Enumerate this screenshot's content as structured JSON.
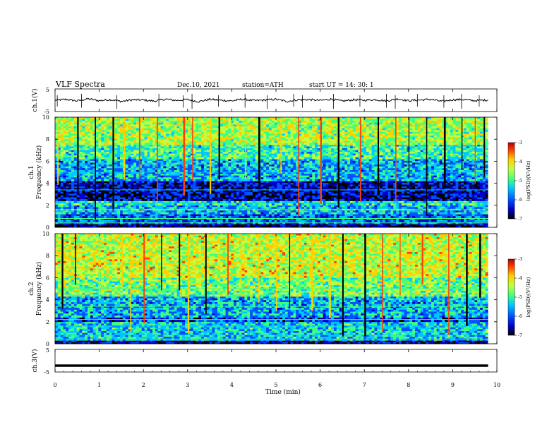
{
  "header": {
    "title": "VLF  Spectra",
    "date": "Dec.10, 2021",
    "station": "station=ATH",
    "start": "start  UT  =   14: 30: 1"
  },
  "chart_data": [
    {
      "type": "line",
      "panel": "ch1",
      "ylabel": "ch.1(V)",
      "ylim": [
        -5,
        5
      ],
      "yticks": [
        "5",
        "-5"
      ],
      "x": [
        0,
        0.25,
        0.5,
        0.75,
        1,
        1.25,
        1.5,
        1.75,
        2,
        2.25,
        2.5,
        2.75,
        3,
        3.25,
        3.5,
        3.75,
        4,
        4.25,
        4.5,
        4.75,
        5,
        5.25,
        5.5,
        5.75,
        6,
        6.25,
        6.5,
        6.75,
        7,
        7.25,
        7.5,
        7.75,
        8,
        8.25,
        8.5,
        8.75,
        9,
        9.25,
        9.5,
        9.8
      ],
      "values": [
        0,
        0.4,
        -0.3,
        0.6,
        -0.2,
        0.3,
        -0.5,
        0.2,
        0.1,
        -0.4,
        0.5,
        -0.1,
        0.3,
        -0.6,
        0.4,
        0,
        -0.3,
        0.5,
        -0.2,
        0.1,
        0.4,
        -0.5,
        0.2,
        0.3,
        -0.1,
        0.5,
        -0.4,
        0.2,
        0,
        0.3,
        -0.3,
        0.6,
        -0.2,
        0.1,
        0.4,
        -0.5,
        0.2,
        0.3,
        -0.2,
        0.1
      ],
      "spikes_min": [
        0.05,
        0.6,
        1.4,
        2.35,
        2.9,
        3.1,
        3.7,
        4.3,
        4.8,
        5.4,
        5.6,
        6.3,
        6.9,
        7.5,
        7.7,
        8.2,
        8.8,
        9.2,
        9.6
      ]
    },
    {
      "type": "heatmap",
      "panel": "ch1",
      "ylabel_channel": "ch.1",
      "ylabel": "Frequency  (kHz)",
      "ylim_khz": [
        0,
        10
      ],
      "yticks": [
        "0",
        "2",
        "4",
        "6",
        "8",
        "10"
      ],
      "colorbar": {
        "label": "log(PSD)(V²/Hz)",
        "range": [
          -7,
          -3
        ],
        "ticks": [
          "-3",
          "-4",
          "-5",
          "-6",
          "-7"
        ]
      },
      "profile": [
        {
          "khz": [
            0,
            0.3
          ],
          "level": -6.8
        },
        {
          "khz": [
            0.3,
            1.2
          ],
          "level": -6.0
        },
        {
          "khz": [
            1.2,
            2.0
          ],
          "level": -5.6
        },
        {
          "khz": [
            2.0,
            2.4
          ],
          "level": -5.3
        },
        {
          "khz": [
            2.4,
            4.2
          ],
          "level": -6.5
        },
        {
          "khz": [
            4.2,
            6.2
          ],
          "level": -5.6
        },
        {
          "khz": [
            6.2,
            7.5
          ],
          "level": -5.1
        },
        {
          "khz": [
            7.5,
            10
          ],
          "level": -4.6
        }
      ]
    },
    {
      "type": "heatmap",
      "panel": "ch2",
      "ylabel_channel": "ch.2",
      "ylabel": "Frequency  (kHz)",
      "ylim_khz": [
        0,
        10
      ],
      "yticks": [
        "0",
        "2",
        "4",
        "6",
        "8",
        "10"
      ],
      "colorbar": {
        "label": "log(PSD)(V²/Hz)",
        "range": [
          -7,
          -3
        ],
        "ticks": [
          "-3",
          "-4",
          "-5",
          "-6",
          "-7"
        ]
      },
      "profile": [
        {
          "khz": [
            0,
            0.3
          ],
          "level": -6.6
        },
        {
          "khz": [
            0.3,
            2.0
          ],
          "level": -5.4
        },
        {
          "khz": [
            2.0,
            2.4
          ],
          "level": -6.2
        },
        {
          "khz": [
            2.4,
            4.3
          ],
          "level": -5.6
        },
        {
          "khz": [
            4.3,
            6.0
          ],
          "level": -4.8
        },
        {
          "khz": [
            6.0,
            10
          ],
          "level": -4.4
        }
      ]
    },
    {
      "type": "line",
      "panel": "ch3",
      "ylabel": "ch.3(V)",
      "ylim": [
        -5,
        5
      ],
      "yticks": [
        "5",
        "-5"
      ],
      "x": [
        0,
        9.8
      ],
      "values": [
        -2.2,
        -2.2
      ]
    }
  ],
  "xaxis": {
    "label": "Time  (min)",
    "range": [
      0,
      10
    ],
    "ticks": [
      "0",
      "1",
      "2",
      "3",
      "4",
      "5",
      "6",
      "7",
      "8",
      "9",
      "10"
    ]
  },
  "colors": {
    "colormap": [
      "#000000",
      "#0000c8",
      "#0050ff",
      "#00c8ff",
      "#40ff80",
      "#c0ff40",
      "#ffd000",
      "#ff4000",
      "#b40000"
    ]
  }
}
